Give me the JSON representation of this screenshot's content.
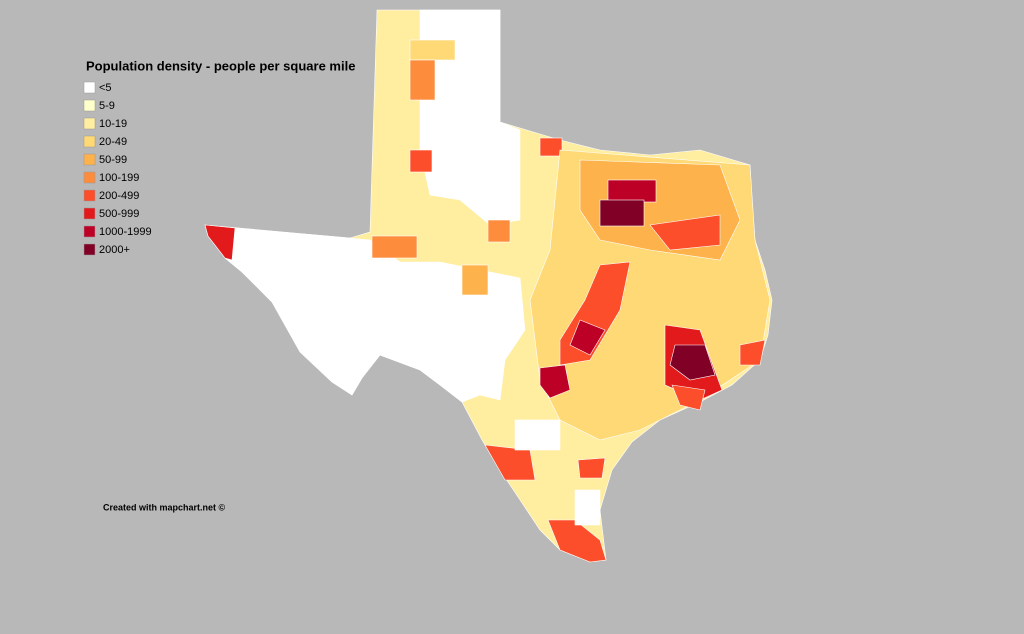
{
  "title": "Population density - people per square mile",
  "legend": [
    {
      "label": "<5",
      "color": "#ffffff"
    },
    {
      "label": "5-9",
      "color": "#ffffcc"
    },
    {
      "label": "10-19",
      "color": "#ffeda0"
    },
    {
      "label": "20-49",
      "color": "#fed976"
    },
    {
      "label": "50-99",
      "color": "#feb24c"
    },
    {
      "label": "100-199",
      "color": "#fd8d3c"
    },
    {
      "label": "200-499",
      "color": "#fc4e2a"
    },
    {
      "label": "500-999",
      "color": "#e31a1c"
    },
    {
      "label": "1000-1999",
      "color": "#bd0026"
    },
    {
      "label": "2000+",
      "color": "#800026"
    }
  ],
  "credit": "Created with mapchart.net ©"
}
